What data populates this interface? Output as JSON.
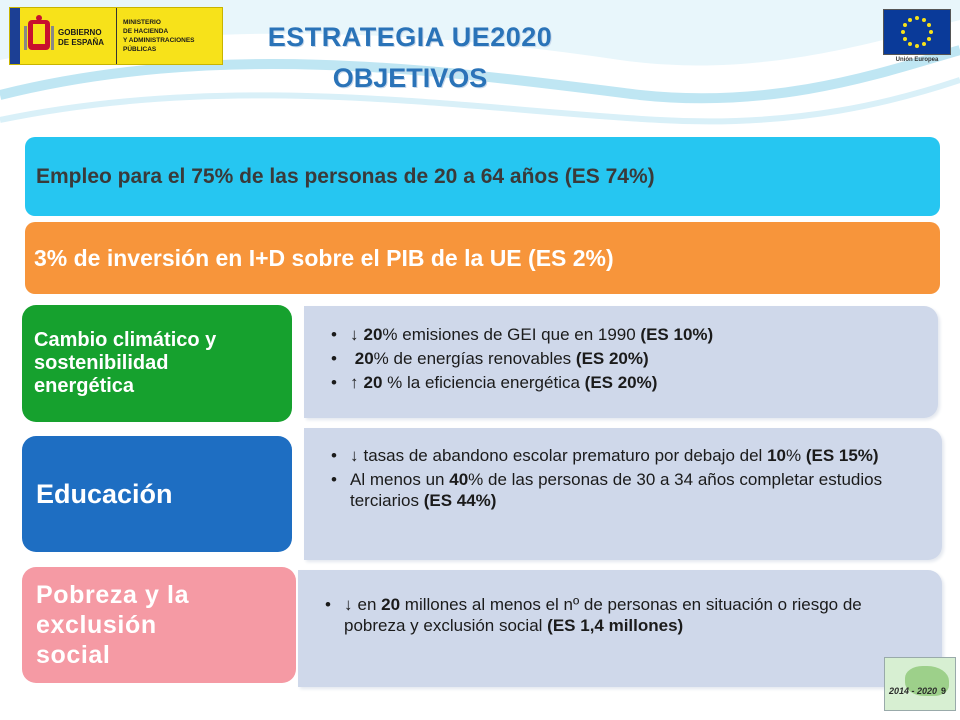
{
  "header": {
    "gov_name": [
      "GOBIERNO",
      "DE ESPAÑA"
    ],
    "ministry": [
      "MINISTERIO",
      "DE HACIENDA",
      "Y ADMINISTRACIONES",
      "PÚBLICAS"
    ],
    "eu_caption": "Unión Europea",
    "title_line1": "ESTRATEGIA UE2020",
    "title_line2": "OBJETIVOS"
  },
  "bars": {
    "employment": "Empleo para el 75% de las personas de 20 a 64 años (ES 74%)",
    "rd": "3% de inversión en I+D sobre el PIB de la UE (ES 2%)"
  },
  "sections": {
    "climate": {
      "title": [
        "Cambio climático y",
        "sostenibilidad",
        "energética"
      ],
      "items": [
        {
          "arrow": "↓",
          "bold": "20",
          "text": "% emisiones de GEI que en 1990 ",
          "es": "(ES 10%)"
        },
        {
          "arrow": "",
          "bold": "20",
          "text": "% de energías renovables ",
          "es": "(ES 20%)"
        },
        {
          "arrow": "↑",
          "bold": "20",
          "text": " % la eficiencia energética ",
          "es": "(ES 20%)"
        }
      ]
    },
    "education": {
      "title": "Educación",
      "items": [
        {
          "arrow": "↓",
          "text": "tasas de abandono escolar prematuro por debajo del ",
          "bold": "10",
          "text2": "% ",
          "es": "(ES 15%)"
        },
        {
          "text": "Al menos un ",
          "bold": "40",
          "text2": "% de las personas de 30 a 34 años completar estudios terciarios ",
          "es": "(ES 44%)"
        }
      ]
    },
    "poverty": {
      "title": [
        "Pobreza y la",
        "exclusión",
        "social"
      ],
      "items": [
        {
          "arrow": "↓",
          "text": "en ",
          "bold": "20",
          "text2": " millones al menos el nº de personas en situación o riesgo de pobreza y exclusión social ",
          "es": "(ES 1,4 millones)"
        }
      ]
    }
  },
  "footer": {
    "thumb_label": "2014 - 2020",
    "page_number": "9"
  },
  "colors": {
    "employment_bar": "#26c6f1",
    "rd_bar": "#f7953b",
    "climate": "#16a12e",
    "education": "#1e6ec2",
    "poverty": "#f59aa4",
    "panel": "#cfd8ea",
    "title": "#2a73b8"
  }
}
